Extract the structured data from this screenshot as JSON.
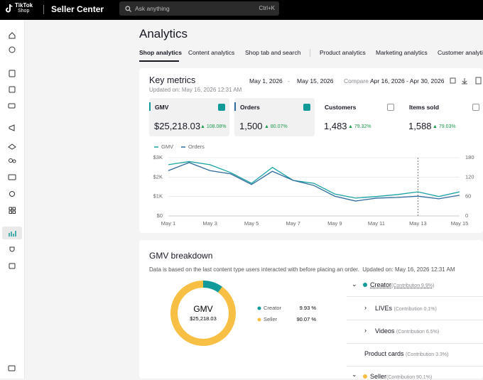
{
  "header": {
    "logo_top": "TikTok",
    "logo_bottom": "Shop",
    "app": "Seller Center",
    "search_placeholder": "Ask anything",
    "search_shortcut": "Ctrl+K"
  },
  "page": {
    "title": "Analytics",
    "tabs": [
      "Shop analytics",
      "Content analytics",
      "Shop tab and search",
      "Product analytics",
      "Marketing analytics",
      "Customer analytics"
    ]
  },
  "key_metrics": {
    "title": "Key metrics",
    "updated": "Updated on: May 16, 2026 12:31 AM",
    "date_start": "May 1, 2026",
    "date_sep": "-",
    "date_end": "May 15, 2026",
    "compare_label": "Compare",
    "compare_range": "Apr 16, 2026 - Apr 30, 2026",
    "metrics": [
      {
        "name": "GMV",
        "value": "$25,218.03",
        "change": "108.08%"
      },
      {
        "name": "Orders",
        "value": "1,500",
        "change": "80.07%"
      },
      {
        "name": "Customers",
        "value": "1,483",
        "change": "79.32%"
      },
      {
        "name": "Items sold",
        "value": "1,588",
        "change": "79.03%"
      }
    ],
    "chart": {
      "type": "line",
      "categories": [
        "May 1",
        null,
        "May 3",
        null,
        "May 5",
        null,
        "May 7",
        null,
        "May 9",
        null,
        "May 11",
        null,
        "May 13",
        null,
        "May 15"
      ],
      "series": [
        {
          "name": "GMV",
          "color": "#1aa3a3",
          "values": [
            2640,
            2800,
            2640,
            2230,
            1680,
            2500,
            1830,
            1680,
            1130,
            920,
            1000,
            1100,
            1240,
            1000,
            1240
          ]
        },
        {
          "name": "Orders",
          "color": "#2f6a9c",
          "axis": "y2",
          "values": [
            140,
            165,
            140,
            130,
            97,
            138,
            110,
            94,
            61,
            46,
            55,
            57,
            61,
            53,
            64
          ]
        }
      ],
      "ylim": [
        0,
        3000
      ],
      "yticks": [
        {
          "value": 0,
          "label": "$0"
        },
        {
          "value": 1000,
          "label": "$1K"
        },
        {
          "value": 2000,
          "label": "$2K"
        },
        {
          "value": 3000,
          "label": "$3K"
        }
      ],
      "y2lim": [
        0,
        180
      ],
      "y2ticks": [
        0,
        60,
        120,
        180
      ],
      "grid": true
    }
  },
  "gmv_breakdown": {
    "title": "GMV breakdown",
    "note": "Data is based on the last content type users interacted with before placing an order.",
    "updated": "Updated on: May 16, 2026 12:31 AM",
    "chart": {
      "type": "pie",
      "center_label": "GMV",
      "categories": [
        "Creator",
        "Seller"
      ],
      "values": [
        9.93,
        90.07
      ],
      "value_labels": [
        "9.93 %",
        "90.07 %"
      ],
      "colors": [
        "#129a9a",
        "#f7c044"
      ]
    },
    "tree": [
      {
        "label": "Creator",
        "contribution": "(Contribution 9.9%)"
      },
      {
        "label": "LIVEs",
        "contribution": "(Contribution 0.1%)"
      },
      {
        "label": "Videos",
        "contribution": "(Contribution 6.5%)"
      },
      {
        "label": "Product cards",
        "contribution": "(Contribution 3.3%)"
      },
      {
        "label": "Seller",
        "contribution": "(Contribution 90.1%)"
      }
    ]
  }
}
